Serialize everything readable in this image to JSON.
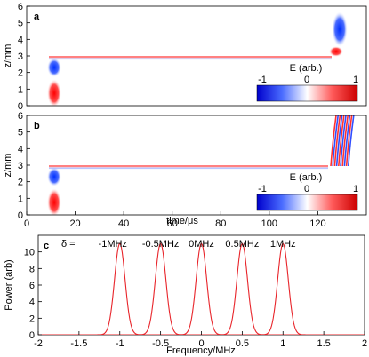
{
  "chart_data": [
    {
      "panel": "a",
      "type": "heatmap",
      "title": "",
      "ylabel": "z/mm",
      "xlim": [
        0,
        140
      ],
      "ylim": [
        0,
        6
      ],
      "yticks": [
        "0",
        "1",
        "2",
        "3",
        "4",
        "5",
        "6"
      ],
      "colorbar": {
        "title": "E (arb.)",
        "ticks": [
          "-1",
          "0",
          "1"
        ],
        "range": [
          -1,
          1
        ]
      },
      "features": [
        {
          "name": "input-pulse-lower",
          "t": [
            7,
            11
          ],
          "z": [
            0,
            2.6
          ]
        },
        {
          "name": "stored-excitation",
          "t": [
            11,
            126
          ],
          "z": [
            2.85,
            3.0
          ]
        },
        {
          "name": "output-pulse",
          "t": [
            126,
            132
          ],
          "z": [
            2.9,
            6
          ]
        }
      ]
    },
    {
      "panel": "b",
      "type": "heatmap",
      "ylabel": "z/mm",
      "xlabel": "time/μs",
      "xlim": [
        0,
        140
      ],
      "ylim": [
        0,
        6
      ],
      "xticks": [
        "0",
        "20",
        "40",
        "60",
        "80",
        "100",
        "120"
      ],
      "yticks": [
        "0",
        "1",
        "2",
        "3",
        "4",
        "5",
        "6"
      ],
      "colorbar": {
        "title": "E (arb.)",
        "ticks": [
          "-1",
          "0",
          "1"
        ],
        "range": [
          -1,
          1
        ]
      },
      "features": [
        {
          "name": "input-pulse-lower",
          "t": [
            7,
            11
          ],
          "z": [
            0,
            2.6
          ]
        },
        {
          "name": "stored-excitation",
          "t": [
            11,
            126
          ],
          "z": [
            2.85,
            3.0
          ]
        },
        {
          "name": "chirped-output",
          "t": [
            124,
            134
          ],
          "z": [
            2.9,
            6
          ]
        }
      ]
    },
    {
      "panel": "c",
      "type": "line",
      "xlabel": "Frequency/MHz",
      "ylabel": "Power (arb)",
      "xlim": [
        -2,
        2
      ],
      "ylim": [
        0,
        12
      ],
      "xticks": [
        "-2",
        "-1.5",
        "-1",
        "-0.5",
        "0",
        "0.5",
        "1",
        "1.5",
        "2"
      ],
      "yticks": [
        "0",
        "2",
        "4",
        "6",
        "8",
        "10"
      ],
      "delta_prefix": "δ =",
      "series": [
        {
          "name": "-1MHz",
          "center": -1.0,
          "peak": 11.0,
          "width": 0.065
        },
        {
          "name": "-0.5MHz",
          "center": -0.5,
          "peak": 11.0,
          "width": 0.065
        },
        {
          "name": "0MHz",
          "center": 0.0,
          "peak": 11.0,
          "width": 0.065
        },
        {
          "name": "0.5MHz",
          "center": 0.5,
          "peak": 11.0,
          "width": 0.065
        },
        {
          "name": "1MHz",
          "center": 1.0,
          "peak": 11.0,
          "width": 0.065
        }
      ],
      "line_color": "#e8242a"
    }
  ],
  "colors": {
    "positive": "#ff1a1a",
    "negative": "#1a3aff",
    "line": "#e8242a"
  }
}
